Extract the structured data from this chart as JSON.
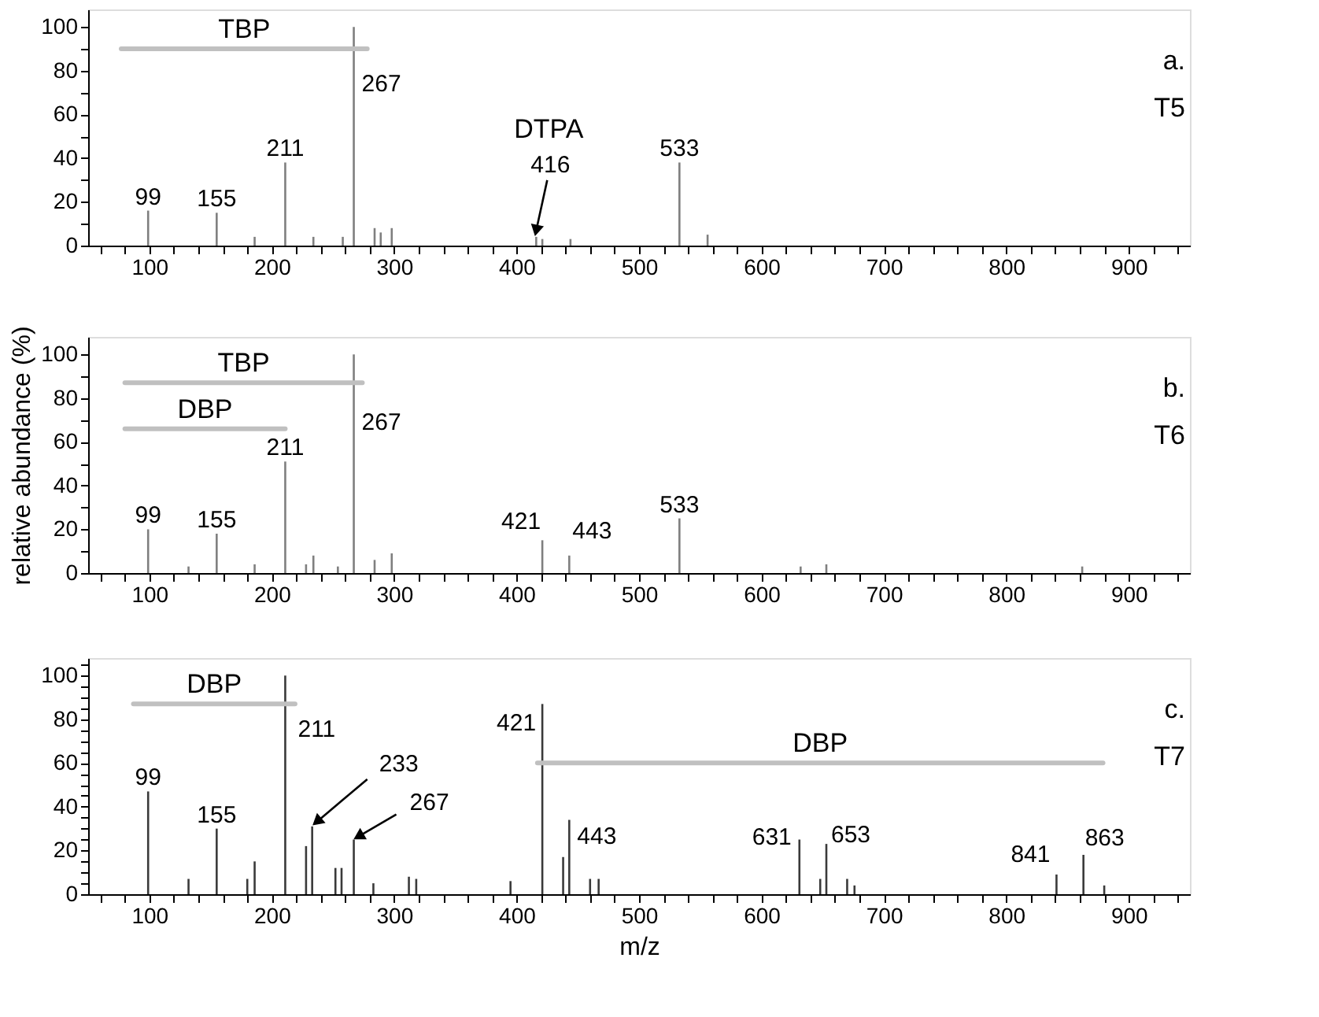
{
  "chart_data": [
    {
      "type": "bar",
      "xlim": [
        50,
        950
      ],
      "ylim": [
        0,
        108
      ],
      "xticks": [
        {
          "value": 60,
          "label": null
        },
        {
          "value": 80,
          "label": null
        },
        100,
        {
          "value": 120,
          "label": null
        },
        {
          "value": 140,
          "label": null
        },
        {
          "value": 160,
          "label": null
        },
        {
          "value": 180,
          "label": null
        },
        200,
        {
          "value": 220,
          "label": null
        },
        {
          "value": 240,
          "label": null
        },
        {
          "value": 260,
          "label": null
        },
        {
          "value": 280,
          "label": null
        },
        300,
        {
          "value": 320,
          "label": null
        },
        {
          "value": 340,
          "label": null
        },
        {
          "value": 360,
          "label": null
        },
        {
          "value": 380,
          "label": null
        },
        400,
        {
          "value": 420,
          "label": null
        },
        {
          "value": 440,
          "label": null
        },
        {
          "value": 460,
          "label": null
        },
        {
          "value": 480,
          "label": null
        },
        500,
        {
          "value": 520,
          "label": null
        },
        {
          "value": 540,
          "label": null
        },
        {
          "value": 560,
          "label": null
        },
        {
          "value": 580,
          "label": null
        },
        600,
        {
          "value": 620,
          "label": null
        },
        {
          "value": 640,
          "label": null
        },
        {
          "value": 660,
          "label": null
        },
        {
          "value": 680,
          "label": null
        },
        700,
        {
          "value": 720,
          "label": null
        },
        {
          "value": 740,
          "label": null
        },
        {
          "value": 760,
          "label": null
        },
        {
          "value": 780,
          "label": null
        },
        800,
        {
          "value": 820,
          "label": null
        },
        {
          "value": 840,
          "label": null
        },
        {
          "value": 860,
          "label": null
        },
        {
          "value": 880,
          "label": null
        },
        900,
        {
          "value": 920,
          "label": null
        },
        {
          "value": 940,
          "label": null
        }
      ],
      "yticks": [
        0,
        {
          "value": 10,
          "label": null
        },
        20,
        {
          "value": 30,
          "label": null
        },
        40,
        {
          "value": 50,
          "label": null
        },
        60,
        {
          "value": 70,
          "label": null
        },
        80,
        {
          "value": 90,
          "label": null
        },
        100
      ],
      "series": [
        {
          "color": "#7f7f7f",
          "x": [
            99,
            155,
            186,
            211,
            234,
            258,
            267,
            284,
            289,
            298,
            416,
            421,
            444,
            533,
            556
          ],
          "values": [
            16,
            15,
            4,
            38,
            4,
            4,
            100,
            8,
            6,
            8,
            4,
            3,
            3,
            38,
            5
          ]
        },
        {
          "type": "line",
          "name": "TBP",
          "color": "#c0c0c0",
          "x": [
            77,
            278
          ],
          "values": [
            90,
            90
          ]
        }
      ],
      "annotations": [
        "a.",
        "T5",
        "DTPA",
        {
          "text": "99",
          "x": 99,
          "y": 16
        },
        {
          "text": "155",
          "x": 155,
          "y": 15
        },
        {
          "text": "211",
          "x": 211,
          "y": 38
        },
        {
          "text": "267",
          "x": 267,
          "y": 100
        },
        {
          "text": "416",
          "x": 416,
          "y": 4
        },
        {
          "text": "533",
          "x": 533,
          "y": 38
        }
      ]
    },
    {
      "type": "bar",
      "xlim": [
        50,
        950
      ],
      "ylim": [
        0,
        108
      ],
      "ylabel": "relative abundance (%)",
      "xticks": [
        {
          "value": 60,
          "label": null
        },
        {
          "value": 80,
          "label": null
        },
        100,
        {
          "value": 120,
          "label": null
        },
        {
          "value": 140,
          "label": null
        },
        {
          "value": 160,
          "label": null
        },
        {
          "value": 180,
          "label": null
        },
        200,
        {
          "value": 220,
          "label": null
        },
        {
          "value": 240,
          "label": null
        },
        {
          "value": 260,
          "label": null
        },
        {
          "value": 280,
          "label": null
        },
        300,
        {
          "value": 320,
          "label": null
        },
        {
          "value": 340,
          "label": null
        },
        {
          "value": 360,
          "label": null
        },
        {
          "value": 380,
          "label": null
        },
        400,
        {
          "value": 420,
          "label": null
        },
        {
          "value": 440,
          "label": null
        },
        {
          "value": 460,
          "label": null
        },
        {
          "value": 480,
          "label": null
        },
        500,
        {
          "value": 520,
          "label": null
        },
        {
          "value": 540,
          "label": null
        },
        {
          "value": 560,
          "label": null
        },
        {
          "value": 580,
          "label": null
        },
        600,
        {
          "value": 620,
          "label": null
        },
        {
          "value": 640,
          "label": null
        },
        {
          "value": 660,
          "label": null
        },
        {
          "value": 680,
          "label": null
        },
        700,
        {
          "value": 720,
          "label": null
        },
        {
          "value": 740,
          "label": null
        },
        {
          "value": 760,
          "label": null
        },
        {
          "value": 780,
          "label": null
        },
        800,
        {
          "value": 820,
          "label": null
        },
        {
          "value": 840,
          "label": null
        },
        {
          "value": 860,
          "label": null
        },
        {
          "value": 880,
          "label": null
        },
        900,
        {
          "value": 920,
          "label": null
        },
        {
          "value": 940,
          "label": null
        }
      ],
      "yticks": [
        0,
        {
          "value": 10,
          "label": null
        },
        20,
        {
          "value": 30,
          "label": null
        },
        40,
        {
          "value": 50,
          "label": null
        },
        60,
        {
          "value": 70,
          "label": null
        },
        80,
        {
          "value": 90,
          "label": null
        },
        100
      ],
      "series": [
        {
          "color": "#7f7f7f",
          "x": [
            99,
            132,
            155,
            186,
            211,
            228,
            234,
            254,
            267,
            284,
            298,
            421,
            443,
            533,
            632,
            653,
            862
          ],
          "values": [
            20,
            3,
            18,
            4,
            51,
            4,
            8,
            3,
            100,
            6,
            9,
            15,
            8,
            25,
            3,
            4,
            3
          ]
        },
        {
          "type": "line",
          "name": "TBP",
          "color": "#c0c0c0",
          "x": [
            80,
            274
          ],
          "values": [
            87,
            87
          ]
        },
        {
          "type": "line",
          "name": "DBP",
          "color": "#c0c0c0",
          "x": [
            80,
            211
          ],
          "values": [
            66,
            66
          ]
        }
      ],
      "annotations": [
        "b.",
        "T6",
        {
          "text": "99",
          "x": 99,
          "y": 20
        },
        {
          "text": "155",
          "x": 155,
          "y": 18
        },
        {
          "text": "211",
          "x": 211,
          "y": 51
        },
        {
          "text": "267",
          "x": 267,
          "y": 100
        },
        {
          "text": "421",
          "x": 421,
          "y": 15
        },
        {
          "text": "443",
          "x": 443,
          "y": 8
        },
        {
          "text": "533",
          "x": 533,
          "y": 25
        }
      ]
    },
    {
      "type": "bar",
      "xlim": [
        50,
        950
      ],
      "ylim": [
        0,
        108
      ],
      "xlabel": "m/z",
      "xticks": [
        {
          "value": 60,
          "label": null
        },
        {
          "value": 80,
          "label": null
        },
        100,
        {
          "value": 120,
          "label": null
        },
        {
          "value": 140,
          "label": null
        },
        {
          "value": 160,
          "label": null
        },
        {
          "value": 180,
          "label": null
        },
        200,
        {
          "value": 220,
          "label": null
        },
        {
          "value": 240,
          "label": null
        },
        {
          "value": 260,
          "label": null
        },
        {
          "value": 280,
          "label": null
        },
        300,
        {
          "value": 320,
          "label": null
        },
        {
          "value": 340,
          "label": null
        },
        {
          "value": 360,
          "label": null
        },
        {
          "value": 380,
          "label": null
        },
        400,
        {
          "value": 420,
          "label": null
        },
        {
          "value": 440,
          "label": null
        },
        {
          "value": 460,
          "label": null
        },
        {
          "value": 480,
          "label": null
        },
        500,
        {
          "value": 520,
          "label": null
        },
        {
          "value": 540,
          "label": null
        },
        {
          "value": 560,
          "label": null
        },
        {
          "value": 580,
          "label": null
        },
        600,
        {
          "value": 620,
          "label": null
        },
        {
          "value": 640,
          "label": null
        },
        {
          "value": 660,
          "label": null
        },
        {
          "value": 680,
          "label": null
        },
        700,
        {
          "value": 720,
          "label": null
        },
        {
          "value": 740,
          "label": null
        },
        {
          "value": 760,
          "label": null
        },
        {
          "value": 780,
          "label": null
        },
        800,
        {
          "value": 820,
          "label": null
        },
        {
          "value": 840,
          "label": null
        },
        {
          "value": 860,
          "label": null
        },
        {
          "value": 880,
          "label": null
        },
        900,
        {
          "value": 920,
          "label": null
        },
        {
          "value": 940,
          "label": null
        }
      ],
      "yticks": [
        0,
        {
          "value": 5,
          "label": null
        },
        {
          "value": 10,
          "label": null
        },
        {
          "value": 15,
          "label": null
        },
        20,
        {
          "value": 25,
          "label": null
        },
        {
          "value": 30,
          "label": null
        },
        {
          "value": 35,
          "label": null
        },
        40,
        {
          "value": 45,
          "label": null
        },
        {
          "value": 50,
          "label": null
        },
        {
          "value": 55,
          "label": null
        },
        60,
        {
          "value": 65,
          "label": null
        },
        {
          "value": 70,
          "label": null
        },
        {
          "value": 75,
          "label": null
        },
        80,
        {
          "value": 85,
          "label": null
        },
        {
          "value": 90,
          "label": null
        },
        {
          "value": 95,
          "label": null
        },
        100,
        {
          "value": 105,
          "label": null
        }
      ],
      "series": [
        {
          "color": "#3a3a3a",
          "x": [
            99,
            132,
            155,
            180,
            186,
            211,
            228,
            233,
            252,
            257,
            267,
            283,
            312,
            318,
            395,
            421,
            438,
            443,
            460,
            467,
            631,
            648,
            653,
            670,
            676,
            841,
            863,
            880
          ],
          "values": [
            47,
            7,
            30,
            7,
            15,
            100,
            22,
            31,
            12,
            12,
            25,
            5,
            8,
            7,
            6,
            87,
            17,
            34,
            7,
            7,
            25,
            7,
            23,
            7,
            4,
            9,
            18,
            4
          ]
        },
        {
          "type": "line",
          "name": "DBP",
          "color": "#c0c0c0",
          "x": [
            87,
            219
          ],
          "values": [
            87,
            87
          ]
        },
        {
          "type": "line",
          "name": "DBP",
          "color": "#c0c0c0",
          "x": [
            417,
            879
          ],
          "values": [
            60,
            60
          ]
        }
      ],
      "annotations": [
        "c.",
        "T7",
        {
          "text": "99",
          "x": 99,
          "y": 47
        },
        {
          "text": "155",
          "x": 155,
          "y": 30
        },
        {
          "text": "211",
          "x": 211,
          "y": 100
        },
        {
          "text": "233",
          "x": 233,
          "y": 31
        },
        {
          "text": "267",
          "x": 267,
          "y": 25
        },
        {
          "text": "421",
          "x": 421,
          "y": 87
        },
        {
          "text": "443",
          "x": 443,
          "y": 34
        },
        {
          "text": "631",
          "x": 631,
          "y": 25
        },
        {
          "text": "653",
          "x": 653,
          "y": 23
        },
        {
          "text": "841",
          "x": 841,
          "y": 9
        },
        {
          "text": "863",
          "x": 863,
          "y": 18
        }
      ]
    }
  ]
}
